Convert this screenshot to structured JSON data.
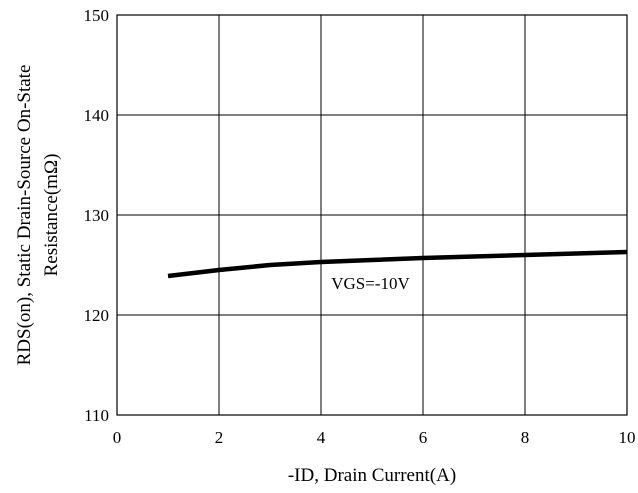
{
  "chart_data": {
    "type": "line",
    "title": "",
    "xlabel": "-ID, Drain Current(A)",
    "ylabel_line1": "RDS(on), Static Drain-Source On-State",
    "ylabel_line2": "Resistance(mΩ)",
    "xlim": [
      0,
      10
    ],
    "ylim": [
      110,
      150
    ],
    "xticks": [
      0,
      2,
      4,
      6,
      8,
      10
    ],
    "yticks": [
      110,
      120,
      130,
      140,
      150
    ],
    "grid": true,
    "annotation": "VGS=-10V",
    "series": [
      {
        "color": "#000000",
        "x": [
          1,
          2,
          3,
          4,
          5,
          6,
          7,
          8,
          9,
          10
        ],
        "y": [
          123.9,
          124.5,
          125.0,
          125.3,
          125.5,
          125.7,
          125.85,
          126.0,
          126.15,
          126.3
        ]
      }
    ]
  }
}
